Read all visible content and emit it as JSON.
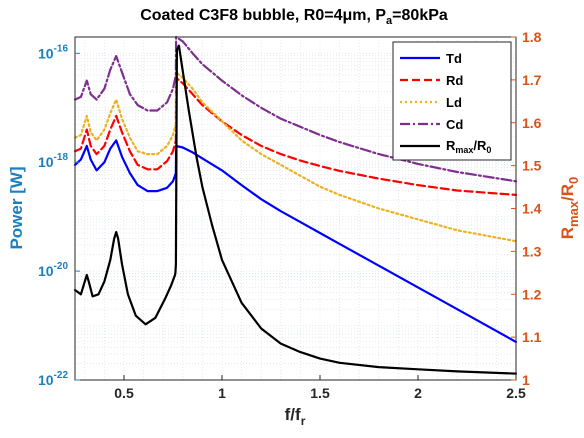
{
  "chart_data": {
    "type": "line",
    "title": "Coated C3F8 bubble, R0=4μm, P",
    "title_sub": "a",
    "title_tail": "=80kPa",
    "xlabel": "f/f",
    "xlabel_sub": "r",
    "xlim": [
      0.25,
      2.5
    ],
    "x_ticks": [
      "0.5",
      "1",
      "1.5",
      "2",
      "2.5"
    ],
    "x_tick_values": [
      0.5,
      1,
      1.5,
      2,
      2.5
    ],
    "y_left": {
      "label": "Power [W]",
      "scale": "log",
      "lim_exp": [
        -22,
        -15.7
      ],
      "ticks": [
        {
          "base": "10",
          "exp": "-22",
          "value": -22
        },
        {
          "base": "10",
          "exp": "-20",
          "value": -20
        },
        {
          "base": "10",
          "exp": "-18",
          "value": -18
        },
        {
          "base": "10",
          "exp": "-16",
          "value": -16
        }
      ],
      "color": "#1a7fc1"
    },
    "y_right": {
      "label": "R",
      "label_sub1": "max",
      "label_mid": "/R",
      "label_sub2": "0",
      "lim": [
        1.0,
        1.8
      ],
      "ticks": [
        "1",
        "1.1",
        "1.2",
        "1.3",
        "1.4",
        "1.5",
        "1.6",
        "1.7",
        "1.8"
      ],
      "tick_values": [
        1.0,
        1.1,
        1.2,
        1.3,
        1.4,
        1.5,
        1.6,
        1.7,
        1.8
      ],
      "color": "#d95319"
    },
    "grid": true,
    "legend_position": "top-right",
    "series": [
      {
        "name": "Td",
        "axis": "left",
        "color": "#0000ff",
        "dash": "",
        "x": [
          0.25,
          0.28,
          0.31,
          0.33,
          0.36,
          0.4,
          0.43,
          0.46,
          0.49,
          0.53,
          0.57,
          0.62,
          0.67,
          0.72,
          0.75,
          0.765,
          0.766,
          0.8,
          0.85,
          0.9,
          1.0,
          1.1,
          1.2,
          1.3,
          1.4,
          1.5,
          1.6,
          1.8,
          2.0,
          2.2,
          2.5
        ],
        "y_exp": [
          -18.05,
          -17.95,
          -17.7,
          -17.95,
          -18.15,
          -18.0,
          -17.75,
          -17.6,
          -17.9,
          -18.2,
          -18.42,
          -18.53,
          -18.53,
          -18.47,
          -18.35,
          -18.2,
          -17.7,
          -17.73,
          -17.82,
          -17.93,
          -18.15,
          -18.42,
          -18.68,
          -18.9,
          -19.1,
          -19.3,
          -19.5,
          -19.9,
          -20.3,
          -20.7,
          -21.3
        ]
      },
      {
        "name": "Rd",
        "axis": "left",
        "color": "#ff0000",
        "dash": "8,4",
        "x": [
          0.25,
          0.28,
          0.31,
          0.33,
          0.36,
          0.4,
          0.43,
          0.46,
          0.49,
          0.53,
          0.57,
          0.62,
          0.67,
          0.72,
          0.75,
          0.765,
          0.766,
          0.8,
          0.85,
          0.9,
          1.0,
          1.1,
          1.2,
          1.3,
          1.4,
          1.5,
          1.6,
          1.8,
          2.0,
          2.2,
          2.5
        ],
        "y_exp": [
          -17.8,
          -17.75,
          -17.4,
          -17.7,
          -17.85,
          -17.7,
          -17.4,
          -17.15,
          -17.45,
          -17.8,
          -18.05,
          -18.13,
          -18.13,
          -17.98,
          -17.8,
          -17.6,
          -16.45,
          -16.55,
          -16.75,
          -16.95,
          -17.25,
          -17.5,
          -17.7,
          -17.85,
          -17.97,
          -18.07,
          -18.16,
          -18.3,
          -18.42,
          -18.52,
          -18.6
        ]
      },
      {
        "name": "Ld",
        "axis": "left",
        "color": "#edb120",
        "dash": "2,3",
        "x": [
          0.25,
          0.28,
          0.31,
          0.33,
          0.36,
          0.4,
          0.43,
          0.46,
          0.49,
          0.53,
          0.57,
          0.62,
          0.67,
          0.72,
          0.75,
          0.765,
          0.766,
          0.8,
          0.85,
          0.9,
          1.0,
          1.1,
          1.2,
          1.3,
          1.4,
          1.5,
          1.6,
          1.8,
          2.0,
          2.2,
          2.5
        ],
        "y_exp": [
          -17.55,
          -17.5,
          -17.15,
          -17.45,
          -17.6,
          -17.4,
          -17.1,
          -16.85,
          -17.2,
          -17.55,
          -17.8,
          -17.85,
          -17.85,
          -17.7,
          -17.5,
          -17.3,
          -16.35,
          -16.45,
          -16.65,
          -16.9,
          -17.25,
          -17.6,
          -17.85,
          -18.05,
          -18.25,
          -18.45,
          -18.6,
          -18.85,
          -19.05,
          -19.25,
          -19.45
        ]
      },
      {
        "name": "Cd",
        "axis": "left",
        "color": "#7e2f8e",
        "dash": "10,3,2,3",
        "x": [
          0.25,
          0.28,
          0.31,
          0.33,
          0.36,
          0.4,
          0.43,
          0.46,
          0.49,
          0.53,
          0.57,
          0.62,
          0.67,
          0.72,
          0.75,
          0.765,
          0.766,
          0.8,
          0.85,
          0.9,
          1.0,
          1.1,
          1.2,
          1.3,
          1.4,
          1.5,
          1.6,
          1.8,
          2.0,
          2.2,
          2.5
        ],
        "y_exp": [
          -16.85,
          -16.8,
          -16.5,
          -16.75,
          -16.85,
          -16.65,
          -16.3,
          -16.05,
          -16.35,
          -16.75,
          -16.95,
          -17.05,
          -17.05,
          -16.9,
          -16.65,
          -16.4,
          -15.7,
          -15.78,
          -16.0,
          -16.2,
          -16.5,
          -16.77,
          -17.0,
          -17.2,
          -17.35,
          -17.5,
          -17.63,
          -17.85,
          -18.03,
          -18.18,
          -18.35
        ]
      },
      {
        "name": "R",
        "name_sub1": "max",
        "name_mid": "/R",
        "name_sub2": "0",
        "axis": "right",
        "color": "#000000",
        "dash": "",
        "x": [
          0.25,
          0.28,
          0.3,
          0.31,
          0.32,
          0.34,
          0.37,
          0.4,
          0.43,
          0.45,
          0.46,
          0.47,
          0.49,
          0.52,
          0.56,
          0.61,
          0.66,
          0.71,
          0.74,
          0.76,
          0.762,
          0.765,
          0.77,
          0.78,
          0.8,
          0.83,
          0.87,
          0.9,
          0.95,
          1.0,
          1.1,
          1.2,
          1.3,
          1.4,
          1.5,
          1.6,
          1.8,
          2.0,
          2.2,
          2.5
        ],
        "y": [
          1.21,
          1.2,
          1.23,
          1.245,
          1.23,
          1.195,
          1.2,
          1.23,
          1.28,
          1.33,
          1.345,
          1.33,
          1.27,
          1.2,
          1.15,
          1.13,
          1.145,
          1.19,
          1.22,
          1.245,
          1.25,
          1.27,
          1.77,
          1.78,
          1.72,
          1.63,
          1.52,
          1.45,
          1.36,
          1.28,
          1.18,
          1.12,
          1.085,
          1.065,
          1.05,
          1.04,
          1.03,
          1.025,
          1.02,
          1.015
        ]
      }
    ]
  }
}
